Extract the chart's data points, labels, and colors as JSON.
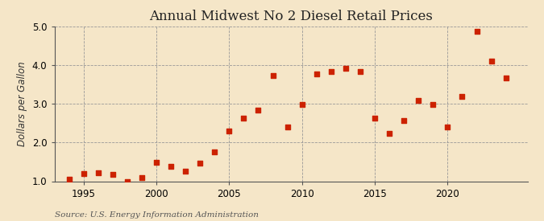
{
  "title": "Annual Midwest No 2 Diesel Retail Prices",
  "ylabel": "Dollars per Gallon",
  "source_text": "Source: U.S. Energy Information Administration",
  "background_color": "#f5e6c8",
  "dot_color": "#cc2200",
  "years": [
    1994,
    1995,
    1996,
    1997,
    1998,
    1999,
    2000,
    2001,
    2002,
    2003,
    2004,
    2005,
    2006,
    2007,
    2008,
    2009,
    2010,
    2011,
    2012,
    2013,
    2014,
    2015,
    2016,
    2017,
    2018,
    2019,
    2020,
    2021,
    2022,
    2023,
    2024
  ],
  "values": [
    1.06,
    1.19,
    1.22,
    1.17,
    1.0,
    1.09,
    1.49,
    1.39,
    1.27,
    1.46,
    1.75,
    2.29,
    2.63,
    2.84,
    3.73,
    2.4,
    2.98,
    3.78,
    3.84,
    3.92,
    3.83,
    2.63,
    2.23,
    2.57,
    3.09,
    2.98,
    2.4,
    3.19,
    4.88,
    4.11,
    3.67
  ],
  "xlim": [
    1993.0,
    2025.5
  ],
  "ylim": [
    1.0,
    5.0
  ],
  "yticks": [
    1.0,
    2.0,
    3.0,
    4.0,
    5.0
  ],
  "xticks": [
    1995,
    2000,
    2005,
    2010,
    2015,
    2020
  ],
  "grid_color": "#999999",
  "title_fontsize": 12,
  "label_fontsize": 8.5,
  "tick_fontsize": 8.5,
  "source_fontsize": 7.5
}
